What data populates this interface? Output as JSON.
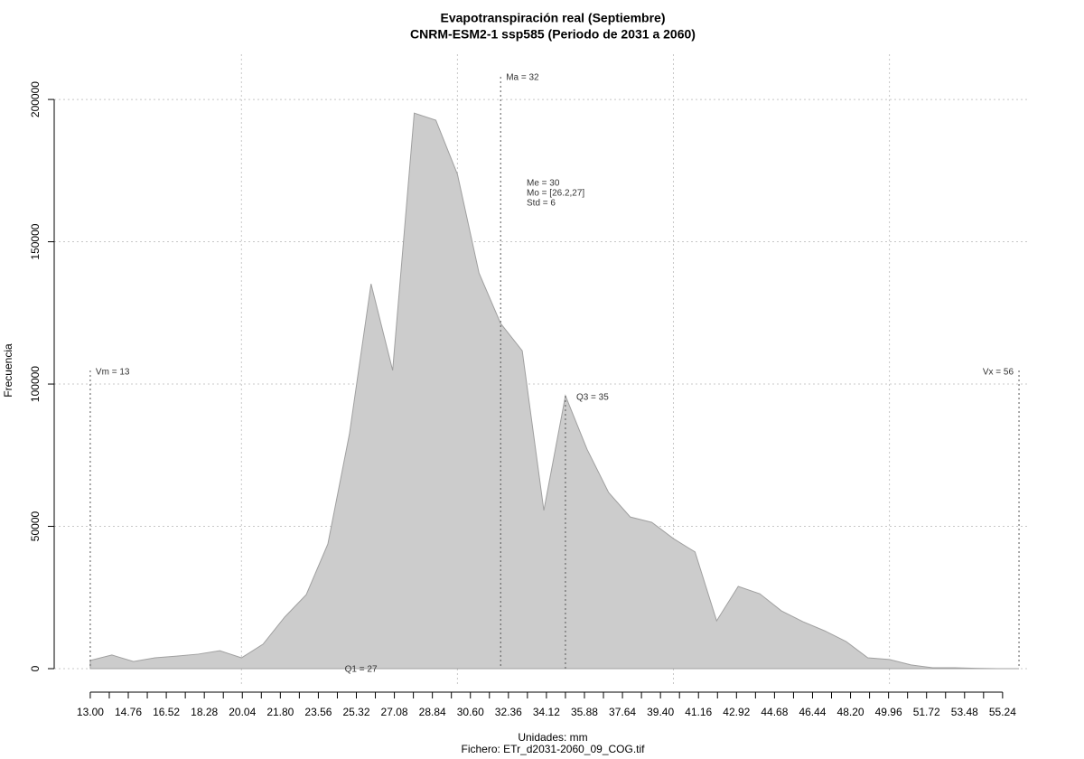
{
  "chart_data": {
    "type": "area",
    "title": "Evapotranspiración real (Septiembre)",
    "subtitle": "CNRM-ESM2-1 ssp585 (Periodo de 2031 a 2060)",
    "x_label": "Unidades: mm",
    "y_label": "Frecuencia",
    "caption": "Fichero: ETr_d2031-2060_09_COG.tif",
    "color": "#cccccc",
    "grid": true,
    "x": [
      13,
      14,
      15,
      16,
      17,
      18,
      19,
      20,
      21,
      22,
      23,
      24,
      25,
      26,
      27,
      28,
      29,
      30,
      31,
      32,
      33,
      34,
      35,
      36,
      37,
      38,
      39,
      40,
      41,
      42,
      43,
      44,
      45,
      46,
      47,
      48,
      49,
      50,
      51,
      52,
      53,
      54,
      55,
      56
    ],
    "values": [
      2900,
      4800,
      2500,
      3800,
      4400,
      5100,
      6300,
      3800,
      8600,
      18100,
      26000,
      43800,
      82500,
      135200,
      104800,
      195200,
      192700,
      173700,
      139000,
      121300,
      111700,
      55600,
      95900,
      77100,
      61900,
      53300,
      51400,
      45700,
      41000,
      16800,
      28900,
      26300,
      20300,
      16500,
      13300,
      9500,
      3800,
      3200,
      1300,
      300,
      300,
      100,
      0,
      0
    ],
    "xlim": [
      11.33,
      56.5
    ],
    "ylim": [
      -6350,
      215900
    ],
    "yticks": [
      0,
      50000,
      100000,
      150000,
      200000
    ],
    "xgrid": [
      20,
      30,
      40,
      50
    ],
    "xticks": [
      {
        "value": 13.0,
        "label": "13.00"
      },
      {
        "value": 14.76,
        "label": "14.76"
      },
      {
        "value": 16.52,
        "label": "16.52"
      },
      {
        "value": 18.28,
        "label": "18.28"
      },
      {
        "value": 20.04,
        "label": "20.04"
      },
      {
        "value": 21.8,
        "label": "21.80"
      },
      {
        "value": 23.56,
        "label": "23.56"
      },
      {
        "value": 25.32,
        "label": "25.32"
      },
      {
        "value": 27.08,
        "label": "27.08"
      },
      {
        "value": 28.84,
        "label": "28.84"
      },
      {
        "value": 30.6,
        "label": "30.60"
      },
      {
        "value": 32.36,
        "label": "32.36"
      },
      {
        "value": 34.12,
        "label": "34.12"
      },
      {
        "value": 35.88,
        "label": "35.88"
      },
      {
        "value": 37.64,
        "label": "37.64"
      },
      {
        "value": 39.4,
        "label": "39.40"
      },
      {
        "value": 41.16,
        "label": "41.16"
      },
      {
        "value": 42.92,
        "label": "42.92"
      },
      {
        "value": 44.68,
        "label": "44.68"
      },
      {
        "value": 46.44,
        "label": "46.44"
      },
      {
        "value": 48.2,
        "label": "48.20"
      },
      {
        "value": 49.96,
        "label": "49.96"
      },
      {
        "value": 51.72,
        "label": "51.72"
      },
      {
        "value": 53.48,
        "label": "53.48"
      },
      {
        "value": 55.24,
        "label": "55.24"
      }
    ],
    "xminorticks": [
      13.88,
      15.64,
      17.4,
      19.16,
      20.92,
      22.68,
      24.44,
      26.2,
      27.96,
      29.72,
      31.48,
      33.24,
      35,
      36.76,
      38.52,
      40.28,
      42.04,
      43.8,
      45.56,
      47.32,
      49.08,
      50.84,
      52.6,
      54.36
    ],
    "annotations": [
      {
        "label": "Vm = 13",
        "value": 13
      },
      {
        "label": "Vx = 56",
        "value": 56
      },
      {
        "label": "Ma = 32",
        "value": 32
      },
      {
        "label": "Q3 = 35",
        "value": 35
      },
      {
        "label": "Q1 = 27",
        "value": 27
      }
    ],
    "stats": [
      "Me = 30",
      "Mo = [26.2,27]",
      "Std = 6"
    ]
  }
}
